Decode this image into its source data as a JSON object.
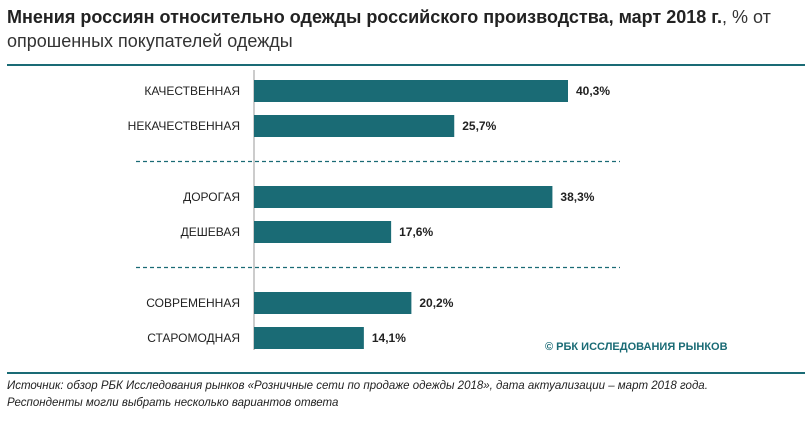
{
  "title": {
    "bold": "Мнения россиян относительно одежды российского производства, март 2018 г.",
    "rest": ", % от опрошенных покупателей одежды"
  },
  "credit": "© РБК ИССЛЕДОВАНИЯ РЫНКОВ",
  "notes": {
    "line1": "Источник: обзор РБК Исследования рынков «Розничные сети по продаже одежды 2018», дата актуализации – март 2018 года.",
    "line2": "Респонденты могли выбрать несколько вариантов ответа"
  },
  "colors": {
    "bar": "#1a6b75",
    "rule": "#1a6b75",
    "divider": "#1a6b75"
  },
  "chart_data": {
    "type": "bar",
    "orientation": "horizontal",
    "categories": [
      "КАЧЕСТВЕННАЯ",
      "НЕКАЧЕСТВЕННАЯ",
      "ДОРОГАЯ",
      "ДЕШЕВАЯ",
      "СОВРЕМЕННАЯ",
      "СТАРОМОДНАЯ"
    ],
    "values": [
      40.3,
      25.7,
      38.3,
      17.6,
      20.2,
      14.1
    ],
    "value_labels": [
      "40,3%",
      "25,7%",
      "38,3%",
      "17,6%",
      "20,2%",
      "14,1%"
    ],
    "groups": [
      [
        0,
        1
      ],
      [
        2,
        3
      ],
      [
        4,
        5
      ]
    ],
    "unit": "%",
    "xlim": [
      0,
      40.3
    ]
  }
}
